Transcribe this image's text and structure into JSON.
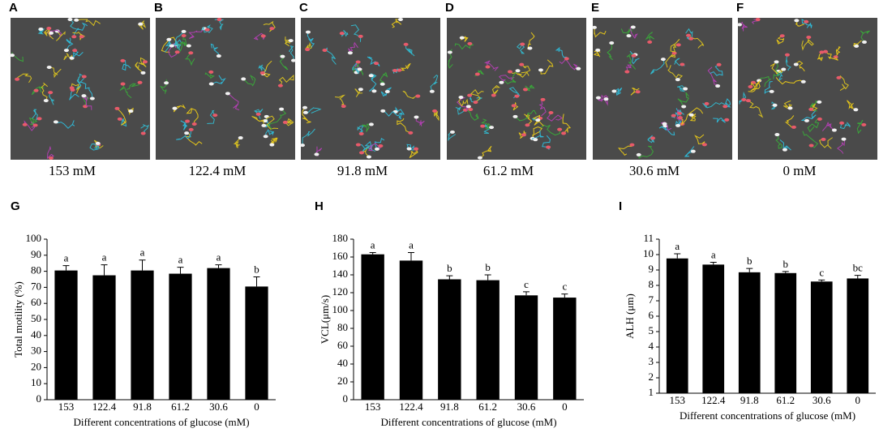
{
  "panels": [
    {
      "letter": "A",
      "caption": "153 mM"
    },
    {
      "letter": "B",
      "caption": "122.4 mM"
    },
    {
      "letter": "C",
      "caption": "91.8 mM"
    },
    {
      "letter": "D",
      "caption": "61.2 mM"
    },
    {
      "letter": "E",
      "caption": "30.6 mM"
    },
    {
      "letter": "F",
      "caption": "0 mM"
    }
  ],
  "chart_data": [
    {
      "type": "bar",
      "panel": "G",
      "y_label": "Total motility (%)",
      "x_label": "Different concentrations of glucose (mM)",
      "categories": [
        "153",
        "122.4",
        "91.8",
        "61.2",
        "30.6",
        "0"
      ],
      "values": [
        80.5,
        77.5,
        80.5,
        78.5,
        82,
        70.5
      ],
      "errors": [
        3,
        6.5,
        6.5,
        4,
        2,
        6
      ],
      "annotations": [
        "a",
        "a",
        "a",
        "a",
        "a",
        "b"
      ],
      "color": "#000000",
      "ylim": [
        0,
        100
      ],
      "yticks": [
        0,
        10,
        20,
        30,
        40,
        50,
        60,
        70,
        80,
        90,
        100
      ]
    },
    {
      "type": "bar",
      "panel": "H",
      "y_label": "VCL(μm/s)",
      "x_label": "Different concentrations  of glucose (mM)",
      "categories": [
        "153",
        "122.4",
        "91.8",
        "61.2",
        "30.6",
        "0"
      ],
      "values": [
        163,
        156,
        135,
        134,
        117,
        114.5
      ],
      "errors": [
        2,
        9,
        4,
        6,
        4,
        4
      ],
      "annotations": [
        "a",
        "a",
        "b",
        "b",
        "c",
        "c"
      ],
      "color": "#000000",
      "ylim": [
        0,
        180
      ],
      "yticks": [
        0,
        20,
        40,
        60,
        80,
        100,
        120,
        140,
        160,
        180
      ]
    },
    {
      "type": "bar",
      "panel": "I",
      "y_label": "ALH (μm)",
      "x_label": "Different concentrations of glucose (mM)",
      "categories": [
        "153",
        "122.4",
        "91.8",
        "61.2",
        "30.6",
        "0"
      ],
      "values": [
        9.75,
        9.35,
        8.85,
        8.8,
        8.25,
        8.45
      ],
      "errors": [
        0.3,
        0.15,
        0.25,
        0.1,
        0.1,
        0.2
      ],
      "annotations": [
        "a",
        "a",
        "b",
        "b",
        "c",
        "bc"
      ],
      "color": "#000000",
      "ylim": [
        1,
        11
      ],
      "yticks": [
        1,
        2,
        3,
        4,
        5,
        6,
        7,
        8,
        9,
        10,
        11
      ]
    }
  ]
}
